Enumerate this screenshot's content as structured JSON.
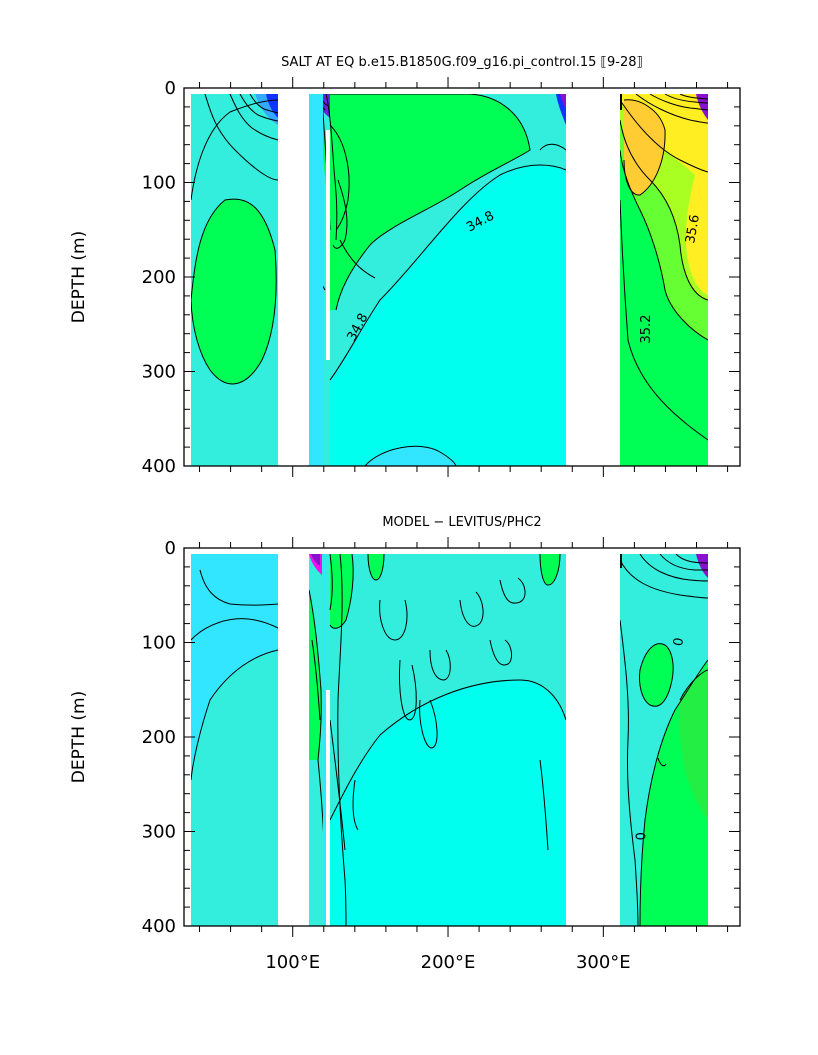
{
  "chart_data": [
    {
      "type": "heatmap",
      "title": "SALT AT EQ  b.e15.B1850G.f09_g16.pi_control.15  ⟦9-28⟧",
      "ylabel": "DEPTH (m)",
      "xlabel": "",
      "xlim": [
        30,
        388
      ],
      "ylim": [
        400,
        0
      ],
      "y_ticks": [
        0,
        100,
        200,
        300,
        400
      ],
      "y_tick_labels": [
        "0",
        "100",
        "200",
        "300",
        "400"
      ],
      "x_ticks": [
        100,
        200,
        300
      ],
      "x_tick_labels": [],
      "y_reversed": true,
      "grid": false,
      "land_gaps_lon": [
        [
          98,
          118
        ],
        [
          278,
          313
        ]
      ],
      "contour_labels": [
        {
          "text": "34.8",
          "lon": 222,
          "depth": 145,
          "rotate": -28
        },
        {
          "text": "34.8",
          "lon": 144,
          "depth": 255,
          "rotate": -62
        },
        {
          "text": "35.6",
          "lon": 360,
          "depth": 150,
          "rotate": -80
        },
        {
          "text": "35.2",
          "lon": 330,
          "depth": 255,
          "rotate": -90
        }
      ]
    },
    {
      "type": "heatmap",
      "title": "MODEL − LEVITUS/PHC2",
      "ylabel": "DEPTH (m)",
      "xlabel": "",
      "xlim": [
        30,
        388
      ],
      "ylim": [
        400,
        0
      ],
      "y_ticks": [
        0,
        100,
        200,
        300,
        400
      ],
      "y_tick_labels": [
        "0",
        "100",
        "200",
        "300",
        "400"
      ],
      "x_ticks": [
        100,
        200,
        300
      ],
      "x_tick_labels": [
        "100°E",
        "200°E",
        "300°E"
      ],
      "y_reversed": true,
      "grid": false,
      "land_gaps_lon": [
        [
          98,
          118
        ],
        [
          278,
          313
        ]
      ],
      "contour_labels": [
        {
          "text": "0",
          "lon": 351,
          "depth": 100,
          "rotate": -80
        },
        {
          "text": "0",
          "lon": 327,
          "depth": 305,
          "rotate": -90
        }
      ]
    }
  ],
  "colors": {
    "background_fill": "#33eedd",
    "cyan": "#00ffee",
    "light_cyan": "#33e6ff",
    "green": "#00ff55",
    "light_green": "#66ff33",
    "yellow_green": "#aaff22",
    "yellow": "#ffee22",
    "orange": "#ffcc33",
    "blue": "#1133ff",
    "purple": "#8811cc",
    "magenta": "#ee11ee",
    "contour": "#000000"
  }
}
